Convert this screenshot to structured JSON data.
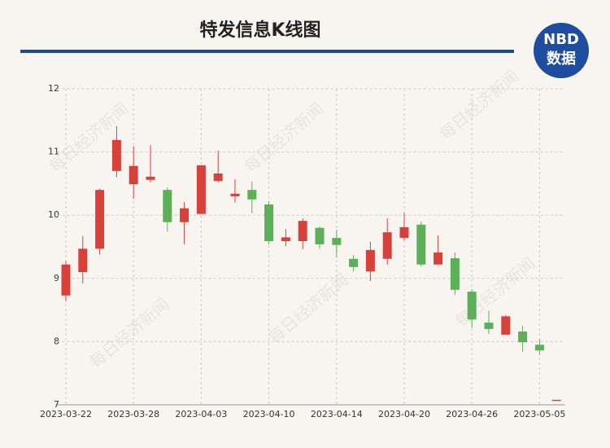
{
  "chart_data": {
    "type": "candlestick",
    "title": "特发信息K线图",
    "logo_text": "NBD",
    "logo_subtext": "数据",
    "watermark": "每日经济新闻",
    "categories": [
      "2023-03-22",
      null,
      null,
      null,
      "2023-03-28",
      null,
      null,
      null,
      "2023-04-03",
      null,
      null,
      null,
      "2023-04-10",
      null,
      null,
      null,
      "2023-04-14",
      null,
      null,
      null,
      "2023-04-20",
      null,
      null,
      null,
      "2023-04-26",
      null,
      null,
      null,
      "2023-05-05",
      null
    ],
    "open": [
      8.73,
      9.1,
      9.47,
      10.7,
      10.49,
      10.56,
      10.4,
      9.89,
      10.02,
      10.54,
      10.3,
      10.4,
      10.17,
      9.59,
      9.59,
      9.8,
      9.64,
      9.31,
      9.11,
      9.31,
      9.64,
      9.85,
      9.22,
      9.32,
      8.79,
      8.3,
      8.11,
      8.16,
      7.95,
      7.08
    ],
    "high": [
      9.28,
      9.67,
      10.42,
      11.41,
      11.09,
      11.11,
      10.44,
      10.21,
      10.79,
      11.02,
      10.57,
      10.53,
      10.22,
      9.78,
      9.95,
      9.82,
      9.77,
      9.37,
      9.58,
      9.95,
      10.04,
      9.9,
      9.68,
      9.41,
      8.83,
      8.49,
      8.42,
      8.25,
      8.04,
      7.08
    ],
    "low": [
      8.64,
      8.92,
      9.38,
      10.6,
      10.26,
      10.52,
      9.74,
      9.54,
      10.02,
      10.52,
      10.2,
      10.03,
      9.54,
      9.51,
      9.46,
      9.47,
      9.33,
      9.11,
      8.96,
      9.22,
      9.6,
      9.19,
      9.22,
      8.74,
      8.22,
      8.12,
      8.11,
      7.84,
      7.79,
      7.08
    ],
    "close": [
      9.22,
      9.47,
      10.4,
      11.19,
      10.78,
      10.61,
      9.89,
      10.11,
      10.79,
      10.66,
      10.34,
      10.25,
      9.59,
      9.65,
      9.91,
      9.54,
      9.53,
      9.18,
      9.45,
      9.73,
      9.81,
      9.22,
      9.41,
      8.82,
      8.35,
      8.2,
      8.4,
      7.99,
      7.86,
      7.08
    ],
    "up_color": "#d8413a",
    "down_color": "#5cb05a",
    "ylim": [
      7,
      12
    ],
    "yticks": [
      7,
      8,
      9,
      10,
      11,
      12
    ],
    "grid": true
  }
}
